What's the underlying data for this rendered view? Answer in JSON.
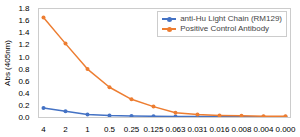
{
  "chart_data": {
    "type": "line",
    "categories": [
      "4",
      "2",
      "1",
      "0.5",
      "0.25",
      "0.125",
      "0.063",
      "0.031",
      "0.016",
      "0.008",
      "0.004",
      "0.000"
    ],
    "series": [
      {
        "name": "anti-Hu Light Chain (RM129)",
        "color": "#4472c4",
        "values": [
          0.155,
          0.105,
          0.05,
          0.032,
          0.025,
          0.02,
          0.018,
          0.016,
          0.015,
          0.014,
          0.013,
          0.012
        ]
      },
      {
        "name": "Positive Control Antibody",
        "color": "#ed7d31",
        "values": [
          1.65,
          1.22,
          0.8,
          0.5,
          0.3,
          0.18,
          0.08,
          0.05,
          0.035,
          0.028,
          0.022,
          0.02
        ]
      }
    ],
    "ylabel": "Abs (405nm)",
    "ylim": [
      0,
      1.8
    ],
    "yticks": [
      {
        "value": 0,
        "label": "0.0"
      },
      0.2,
      0.4,
      0.6,
      0.8,
      {
        "value": 1,
        "label": "1.0"
      },
      1.2,
      1.4,
      1.6,
      1.8
    ],
    "grid": false,
    "legend": "upper right",
    "marker": "circle"
  }
}
